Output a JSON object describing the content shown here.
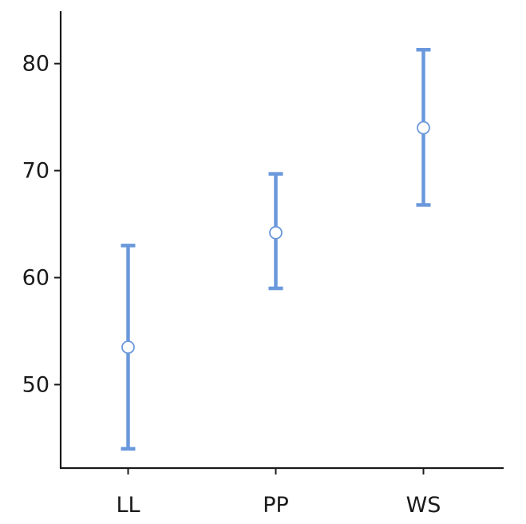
{
  "chart_data": {
    "type": "scatter",
    "title": "",
    "xlabel": "",
    "ylabel": "",
    "categories": [
      "LL",
      "PP",
      "WS"
    ],
    "series": [
      {
        "values": [
          53.5,
          64.2,
          74.0
        ],
        "lower": [
          44.0,
          59.0,
          66.8
        ],
        "upper": [
          63.0,
          69.7,
          81.3
        ]
      }
    ],
    "yticks": [
      50,
      60,
      70,
      80
    ],
    "ylim": [
      42.2,
      84.9
    ],
    "grid": false,
    "legend": "none",
    "colors": {
      "series": "#6a98dc",
      "axis": "#1a1a1a",
      "marker_fill": "#ffffff"
    }
  }
}
